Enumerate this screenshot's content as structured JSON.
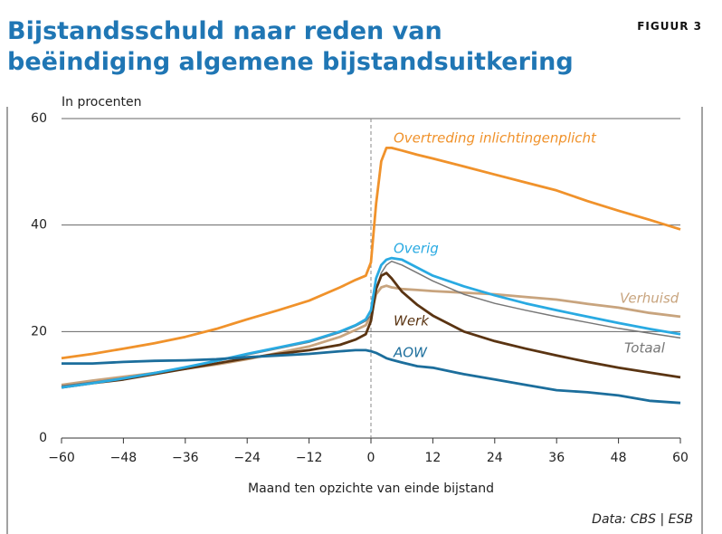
{
  "chart_data": {
    "type": "line",
    "title": "Bijstandsschuld naar reden van beëindiging algemene bijstandsuitkering",
    "figure_label": "FIGUUR 3",
    "y_label": "In procenten",
    "x_label": "Maand ten opzichte van einde bijstand",
    "source": "Data: CBS | ESB",
    "x": [
      -60,
      -54,
      -48,
      -42,
      -36,
      -30,
      -24,
      -18,
      -12,
      -6,
      -3,
      -1,
      0,
      1,
      2,
      3,
      4,
      6,
      9,
      12,
      18,
      24,
      30,
      36,
      42,
      48,
      54,
      60
    ],
    "series": [
      {
        "name": "Overtreding inlichtingenplicht",
        "color": "#f0922b",
        "values": [
          15,
          15.8,
          16.8,
          17.8,
          19,
          20.5,
          22.3,
          24,
          25.8,
          28.3,
          29.7,
          30.5,
          33,
          44,
          52,
          54.5,
          54.5,
          54,
          53.2,
          52.5,
          51,
          49.5,
          48,
          46.5,
          44.5,
          42.7,
          41,
          39.2
        ]
      },
      {
        "name": "Verhuisd",
        "color": "#c8a47e",
        "values": [
          10,
          10.8,
          11.5,
          12.2,
          13,
          13.8,
          14.8,
          16,
          17.2,
          19,
          20.3,
          21.2,
          23,
          27,
          28.3,
          28.6,
          28.3,
          28,
          27.8,
          27.6,
          27.3,
          27,
          26.5,
          26,
          25.2,
          24.5,
          23.5,
          22.8
        ]
      },
      {
        "name": "Totaal",
        "color": "#777777",
        "values": [
          9.8,
          10.5,
          11.3,
          12.3,
          13.3,
          14.4,
          15.6,
          16.8,
          18,
          19.8,
          21,
          22,
          23,
          28,
          31,
          32.5,
          33.2,
          32.5,
          31,
          29.5,
          27,
          25.3,
          24,
          22.8,
          21.7,
          20.6,
          19.7,
          18.8
        ]
      },
      {
        "name": "Werk",
        "color": "#5a3412",
        "values": [
          9.5,
          10.3,
          11,
          12,
          13,
          14,
          15,
          15.8,
          16.5,
          17.5,
          18.5,
          19.5,
          22,
          28,
          30.5,
          31,
          30,
          27.5,
          25,
          23,
          20,
          18.2,
          16.8,
          15.5,
          14.3,
          13.2,
          12.3,
          11.4
        ]
      },
      {
        "name": "Overig",
        "color": "#29aae2",
        "values": [
          9.5,
          10.3,
          11.2,
          12.2,
          13.3,
          14.5,
          15.8,
          17,
          18.2,
          20,
          21.2,
          22.3,
          24,
          30,
          32.5,
          33.5,
          33.8,
          33.5,
          32,
          30.5,
          28.5,
          26.8,
          25.3,
          24,
          22.8,
          21.6,
          20.5,
          19.5
        ]
      },
      {
        "name": "AOW",
        "color": "#1c6e9c",
        "values": [
          14,
          14,
          14.3,
          14.5,
          14.6,
          14.8,
          15.2,
          15.5,
          15.8,
          16.3,
          16.5,
          16.5,
          16.3,
          16,
          15.5,
          15,
          14.7,
          14.2,
          13.5,
          13.2,
          12,
          11,
          10,
          9,
          8.6,
          8,
          7,
          6.6
        ]
      }
    ],
    "xlim": [
      -60,
      60
    ],
    "xticks": [
      {
        "value": -60,
        "label": "−60"
      },
      {
        "value": -48,
        "label": "−48"
      },
      {
        "value": -36,
        "label": "−36"
      },
      {
        "value": -24,
        "label": "−24"
      },
      {
        "value": -12,
        "label": "−12"
      },
      0,
      12,
      24,
      36,
      48,
      60
    ],
    "ylim": [
      0,
      60
    ],
    "yticks": [
      0,
      20,
      40,
      60
    ],
    "grid": true,
    "reference_x": 0
  }
}
